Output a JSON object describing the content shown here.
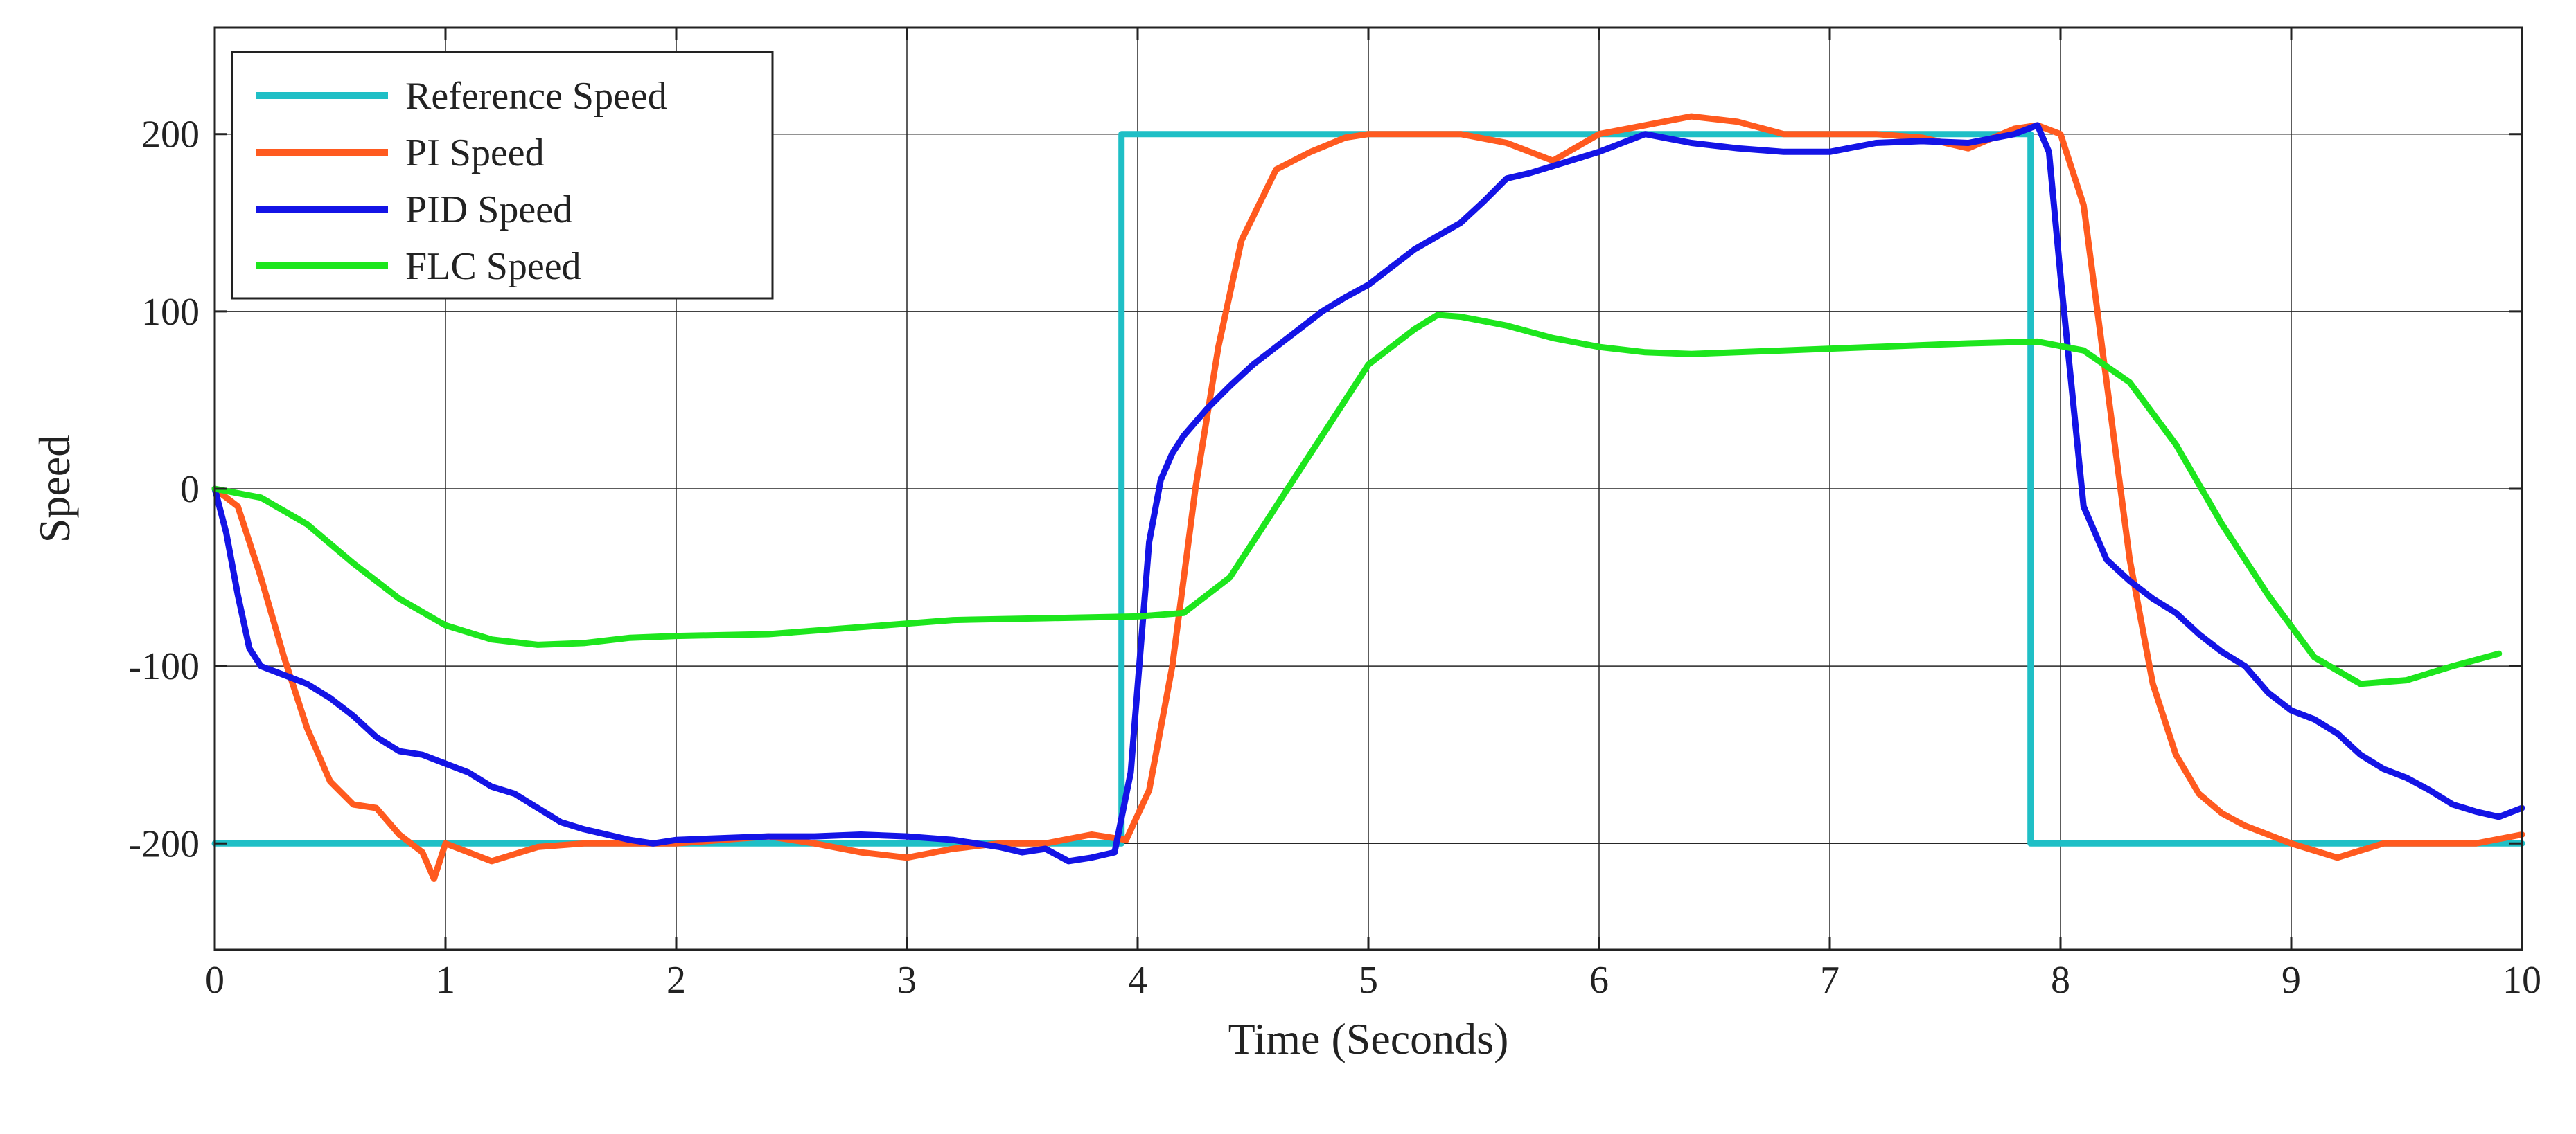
{
  "chart_data": {
    "type": "line",
    "title": "",
    "xlabel": "Time (Seconds)",
    "ylabel": "Speed",
    "xlim": [
      0,
      10
    ],
    "ylim": [
      -260,
      260
    ],
    "xticks": [
      0,
      1,
      2,
      3,
      4,
      5,
      6,
      7,
      8,
      9,
      10
    ],
    "xtick_labels": [
      "0",
      "1",
      "2",
      "3",
      "4",
      "5",
      "6",
      "7",
      "8",
      "9",
      "10"
    ],
    "yticks": [
      -200,
      -100,
      0,
      100,
      200
    ],
    "ytick_labels": [
      "-200",
      "-100",
      "0",
      "100",
      "200"
    ],
    "grid": true,
    "legend": {
      "placement": "top-left"
    },
    "series": [
      {
        "name": "Reference Speed",
        "color": "#1FBFC6",
        "x": [
          0,
          3.93,
          3.93,
          7.87,
          7.87,
          10
        ],
        "y": [
          -200,
          -200,
          200,
          200,
          -200,
          -200
        ]
      },
      {
        "name": "PI Speed",
        "color": "#FF5A1F",
        "x": [
          0,
          0.1,
          0.2,
          0.3,
          0.4,
          0.5,
          0.6,
          0.7,
          0.8,
          0.9,
          0.95,
          1.0,
          1.1,
          1.2,
          1.4,
          1.6,
          1.8,
          2.0,
          2.2,
          2.4,
          2.6,
          2.8,
          3.0,
          3.2,
          3.4,
          3.6,
          3.8,
          3.95,
          4.05,
          4.15,
          4.25,
          4.35,
          4.45,
          4.6,
          4.75,
          4.9,
          5.0,
          5.2,
          5.4,
          5.6,
          5.8,
          6.0,
          6.2,
          6.4,
          6.6,
          6.8,
          7.0,
          7.2,
          7.4,
          7.6,
          7.8,
          7.9,
          8.0,
          8.1,
          8.2,
          8.3,
          8.4,
          8.5,
          8.6,
          8.7,
          8.8,
          9.0,
          9.2,
          9.4,
          9.6,
          9.8,
          10.0
        ],
        "y": [
          0,
          -10,
          -50,
          -95,
          -135,
          -165,
          -178,
          -180,
          -195,
          -205,
          -220,
          -200,
          -205,
          -210,
          -202,
          -200,
          -200,
          -200,
          -198,
          -196,
          -200,
          -205,
          -208,
          -203,
          -200,
          -200,
          -195,
          -198,
          -170,
          -100,
          0,
          80,
          140,
          180,
          190,
          198,
          200,
          200,
          200,
          195,
          185,
          200,
          205,
          210,
          207,
          200,
          200,
          200,
          198,
          192,
          203,
          205,
          200,
          160,
          60,
          -40,
          -110,
          -150,
          -172,
          -183,
          -190,
          -200,
          -208,
          -200,
          -200,
          -200,
          -195
        ]
      },
      {
        "name": "PID Speed",
        "color": "#1414E6",
        "x": [
          0,
          0.05,
          0.1,
          0.15,
          0.2,
          0.3,
          0.4,
          0.5,
          0.6,
          0.7,
          0.8,
          0.9,
          1.0,
          1.1,
          1.2,
          1.3,
          1.4,
          1.5,
          1.6,
          1.7,
          1.8,
          1.9,
          2.0,
          2.2,
          2.4,
          2.6,
          2.8,
          3.0,
          3.2,
          3.4,
          3.5,
          3.6,
          3.7,
          3.8,
          3.9,
          3.97,
          4.05,
          4.1,
          4.15,
          4.2,
          4.3,
          4.4,
          4.5,
          4.6,
          4.7,
          4.8,
          4.9,
          5.0,
          5.2,
          5.4,
          5.5,
          5.6,
          5.7,
          5.8,
          6.0,
          6.2,
          6.4,
          6.6,
          6.8,
          7.0,
          7.2,
          7.4,
          7.6,
          7.8,
          7.9,
          7.95,
          8.0,
          8.1,
          8.2,
          8.3,
          8.4,
          8.5,
          8.6,
          8.7,
          8.8,
          8.9,
          9.0,
          9.1,
          9.2,
          9.3,
          9.4,
          9.5,
          9.6,
          9.7,
          9.8,
          9.9,
          10.0
        ],
        "y": [
          0,
          -25,
          -60,
          -90,
          -100,
          -105,
          -110,
          -118,
          -128,
          -140,
          -148,
          -150,
          -155,
          -160,
          -168,
          -172,
          -180,
          -188,
          -192,
          -195,
          -198,
          -200,
          -198,
          -197,
          -196,
          -196,
          -195,
          -196,
          -198,
          -202,
          -205,
          -203,
          -210,
          -208,
          -205,
          -160,
          -30,
          5,
          20,
          30,
          45,
          58,
          70,
          80,
          90,
          100,
          108,
          115,
          135,
          150,
          162,
          175,
          178,
          182,
          190,
          200,
          195,
          192,
          190,
          190,
          195,
          196,
          195,
          200,
          205,
          190,
          120,
          -10,
          -40,
          -52,
          -62,
          -70,
          -82,
          -92,
          -100,
          -115,
          -125,
          -130,
          -138,
          -150,
          -158,
          -163,
          -170,
          -178,
          -182,
          -185,
          -180
        ]
      },
      {
        "name": "FLC Speed",
        "color": "#1DE61D",
        "x": [
          0,
          0.2,
          0.4,
          0.6,
          0.8,
          1.0,
          1.2,
          1.4,
          1.6,
          1.8,
          2.0,
          2.4,
          2.8,
          3.2,
          3.6,
          4.0,
          4.2,
          4.4,
          4.6,
          4.8,
          5.0,
          5.2,
          5.3,
          5.4,
          5.6,
          5.8,
          6.0,
          6.2,
          6.4,
          6.8,
          7.2,
          7.6,
          7.9,
          8.1,
          8.3,
          8.5,
          8.7,
          8.9,
          9.1,
          9.3,
          9.5,
          9.7,
          9.9
        ],
        "y": [
          0,
          -5,
          -20,
          -42,
          -62,
          -77,
          -85,
          -88,
          -87,
          -84,
          -83,
          -82,
          -78,
          -74,
          -73,
          -72,
          -70,
          -50,
          -10,
          30,
          70,
          90,
          98,
          97,
          92,
          85,
          80,
          77,
          76,
          78,
          80,
          82,
          83,
          78,
          60,
          25,
          -20,
          -60,
          -95,
          -110,
          -108,
          -100,
          -93
        ]
      }
    ]
  }
}
